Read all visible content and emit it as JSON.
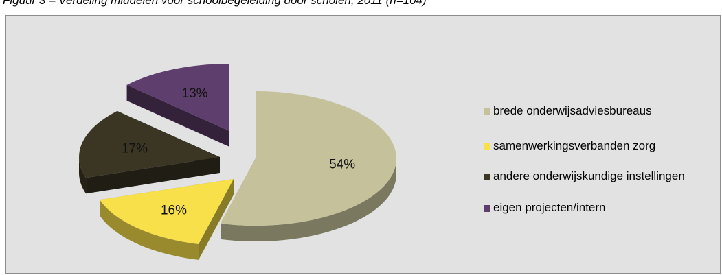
{
  "caption": "Figuur 3 – Verdeling middelen voor schoolbegeleiding door scholen, 2011 (n=104)",
  "chart_data": {
    "type": "pie",
    "style": "3d-exploded",
    "legend_position": "right",
    "slices": [
      {
        "label": "brede onderwijsadviesbureaus",
        "value": 54,
        "display": "54%",
        "color": "#c5c19a"
      },
      {
        "label": "samenwerkingsverbanden zorg",
        "value": 16,
        "display": "16%",
        "color": "#f7e049"
      },
      {
        "label": "andere onderwijskundige instellingen",
        "value": 17,
        "display": "17%",
        "color": "#3b3624"
      },
      {
        "label": "eigen projecten/intern",
        "value": 13,
        "display": "13%",
        "color": "#5e3e6c"
      }
    ]
  }
}
